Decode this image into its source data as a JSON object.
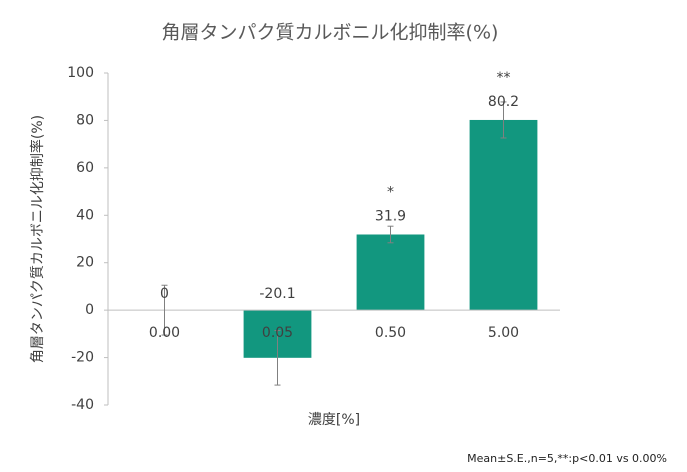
{
  "chart_data": {
    "type": "bar",
    "title": "角層タンパク質カルボニル化抑制率(%)",
    "ylabel": "角層タンパク質カルボニル化抑制率(%)",
    "xlabel": "濃度[%]",
    "categories": [
      "0.00",
      "0.05",
      "0.50",
      "5.00"
    ],
    "values": [
      0,
      -20.1,
      31.9,
      80.2
    ],
    "errors": [
      10.5,
      11.5,
      3.5,
      7.6
    ],
    "significance": [
      null,
      null,
      "*",
      "**"
    ],
    "color": "#12977f",
    "ylim": [
      -40,
      100
    ],
    "yticks": [
      -40,
      -20,
      0,
      20,
      40,
      60,
      80,
      100
    ],
    "grid": false,
    "note": "Mean±S.E.,n=5,**:p<0.01 vs 0.00%"
  }
}
